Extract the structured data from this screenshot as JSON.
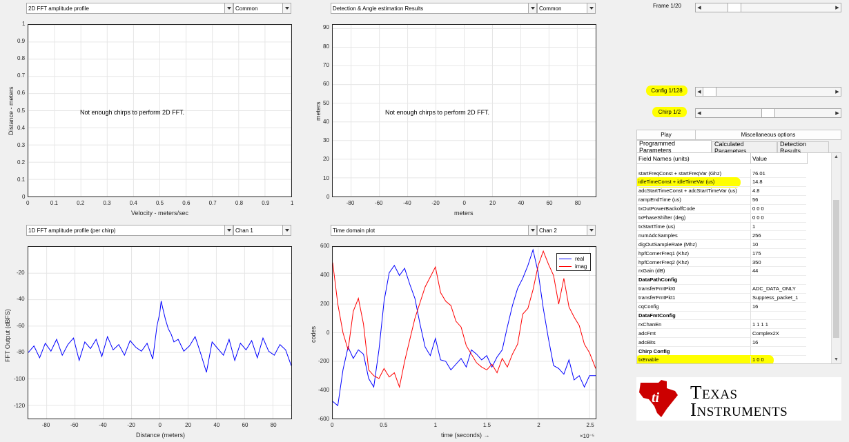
{
  "panels": {
    "top_left": {
      "dropdown": "2D FFT amplitude profile",
      "sub_dropdown": "Common",
      "message": "Not enough chirps to perform 2D FFT.",
      "xlabel": "Velocity - meters/sec",
      "ylabel": "Distance - meters",
      "xticks": [
        "0",
        "0.1",
        "0.2",
        "0.3",
        "0.4",
        "0.5",
        "0.6",
        "0.7",
        "0.8",
        "0.9",
        "1"
      ],
      "yticks": [
        "0",
        "0.1",
        "0.2",
        "0.3",
        "0.4",
        "0.5",
        "0.6",
        "0.7",
        "0.8",
        "0.9",
        "1"
      ]
    },
    "top_mid": {
      "dropdown": "Detection & Angle estimation Results",
      "sub_dropdown": "Common",
      "message": "Not enough chirps to perform 2D FFT.",
      "xlabel": "meters",
      "ylabel": "meters",
      "xticks": [
        "-80",
        "-60",
        "-40",
        "-20",
        "0",
        "20",
        "40",
        "60",
        "80"
      ],
      "yticks": [
        "0",
        "10",
        "20",
        "30",
        "40",
        "50",
        "60",
        "70",
        "80",
        "90"
      ]
    },
    "bottom_left": {
      "dropdown": "1D FFT amplitude profile (per chirp)",
      "sub_dropdown": "Chan 1",
      "xlabel": "Distance (meters)",
      "ylabel": "FFT Output (dBFS)",
      "xticks": [
        "-80",
        "-60",
        "-40",
        "-20",
        "0",
        "20",
        "40",
        "60",
        "80"
      ],
      "yticks": [
        "-20",
        "-40",
        "-60",
        "-80",
        "-100",
        "-120"
      ]
    },
    "bottom_mid": {
      "dropdown": "Time domain plot",
      "sub_dropdown": "Chan 2",
      "xlabel": "time  (seconds) →",
      "ylabel": "codes",
      "exponent": "×10⁻⁵",
      "xticks": [
        "0",
        "0.5",
        "1",
        "1.5",
        "2",
        "2.5"
      ],
      "yticks": [
        "600",
        "400",
        "200",
        "0",
        "-200",
        "-400",
        "-600"
      ],
      "legend": [
        "real",
        "imag"
      ]
    }
  },
  "controls": {
    "frame_label": "Frame 1/20",
    "frame_value": 0.21,
    "config_label": "Config 1/128",
    "config_value": 0.0,
    "chirp_label": "Chirp 1/2",
    "chirp_value": 0.5,
    "play_button": "Play",
    "misc_button": "Miscellaneous options"
  },
  "tabs": [
    "Programmed Parameters",
    "Calculated Parameters",
    "Detection Results"
  ],
  "table": {
    "headers": [
      "Field Names    (units)",
      "Value"
    ],
    "rows": [
      {
        "name": "startFreqConst + startFreqVar (Ghz)",
        "value": "76.01",
        "section": false,
        "highlight": false
      },
      {
        "name": "idleTimeConst + idleTimeVar (us)",
        "value": "14.8",
        "section": false,
        "highlight": true
      },
      {
        "name": "adcStartTimeConst + adcStartTimeVar (us)",
        "value": "4.8",
        "section": false,
        "highlight": false
      },
      {
        "name": "rampEndTime (us)",
        "value": "56",
        "section": false,
        "highlight": false
      },
      {
        "name": "txOutPowerBackoffCode",
        "value": "0 0 0",
        "section": false,
        "highlight": false
      },
      {
        "name": "txPhaseShifter (deg)",
        "value": "0 0 0",
        "section": false,
        "highlight": false
      },
      {
        "name": "txStartTime (us)",
        "value": "1",
        "section": false,
        "highlight": false
      },
      {
        "name": "numAdcSamples",
        "value": "256",
        "section": false,
        "highlight": false
      },
      {
        "name": "digOutSampleRate (Mhz)",
        "value": "10",
        "section": false,
        "highlight": false
      },
      {
        "name": "hpfCornerFreq1 (Khz)",
        "value": "175",
        "section": false,
        "highlight": false
      },
      {
        "name": "hpfCornerFreq2 (Khz)",
        "value": "350",
        "section": false,
        "highlight": false
      },
      {
        "name": "rxGain (dB)",
        "value": "44",
        "section": false,
        "highlight": false
      },
      {
        "name": "DataPathConfig",
        "value": "",
        "section": true,
        "highlight": false
      },
      {
        "name": "transferFmtPkt0",
        "value": "ADC_DATA_ONLY",
        "section": false,
        "highlight": false
      },
      {
        "name": "transferFmtPkt1",
        "value": "Suppress_packet_1",
        "section": false,
        "highlight": false
      },
      {
        "name": "cqConfig",
        "value": "16",
        "section": false,
        "highlight": false
      },
      {
        "name": "DataFmtConfig",
        "value": "",
        "section": true,
        "highlight": false
      },
      {
        "name": "rxChanEn",
        "value": "1 1 1 1",
        "section": false,
        "highlight": false
      },
      {
        "name": "adcFmt",
        "value": "Complex2X",
        "section": false,
        "highlight": false
      },
      {
        "name": "adcBits",
        "value": "16",
        "section": false,
        "highlight": false
      },
      {
        "name": "Chirp Config",
        "value": "",
        "section": true,
        "highlight": false
      },
      {
        "name": "txEnable",
        "value": "1 0 0",
        "section": false,
        "highlight": true
      }
    ]
  },
  "logo": {
    "line1": "Texas",
    "line2": "Instruments",
    "color": "#cc0000"
  },
  "chart_data": [
    {
      "type": "line",
      "title": "",
      "xlabel": "Distance (meters)",
      "ylabel": "FFT Output (dBFS)",
      "xlim": [
        -93,
        93
      ],
      "ylim": [
        -130,
        0
      ],
      "series": [
        {
          "color": "#0000ff",
          "x": [
            -93,
            -89,
            -85,
            -81,
            -77,
            -73,
            -69,
            -65,
            -61,
            -57,
            -53,
            -49,
            -45,
            -41,
            -37,
            -33,
            -29,
            -25,
            -21,
            -17,
            -13,
            -9,
            -5,
            -2,
            0,
            1,
            2,
            4,
            6,
            8,
            10,
            13,
            17,
            21,
            25,
            29,
            33,
            37,
            41,
            45,
            49,
            53,
            57,
            61,
            65,
            69,
            73,
            77,
            81,
            85,
            89,
            93
          ],
          "values": [
            -80,
            -75,
            -84,
            -73,
            -79,
            -70,
            -82,
            -74,
            -69,
            -86,
            -72,
            -77,
            -70,
            -83,
            -68,
            -78,
            -74,
            -82,
            -71,
            -76,
            -79,
            -73,
            -85,
            -60,
            -50,
            -41,
            -46,
            -55,
            -62,
            -66,
            -72,
            -70,
            -79,
            -75,
            -68,
            -81,
            -95,
            -72,
            -77,
            -82,
            -70,
            -86,
            -73,
            -78,
            -71,
            -84,
            -69,
            -79,
            -82,
            -74,
            -78,
            -90
          ]
        }
      ]
    },
    {
      "type": "line",
      "title": "",
      "xlabel": "time  (seconds)",
      "ylabel": "codes",
      "xlim": [
        0,
        2.56
      ],
      "ylim": [
        -600,
        600
      ],
      "series": [
        {
          "name": "real",
          "color": "#0000ff",
          "x": [
            0,
            0.05,
            0.1,
            0.15,
            0.2,
            0.25,
            0.3,
            0.35,
            0.4,
            0.45,
            0.5,
            0.55,
            0.6,
            0.65,
            0.7,
            0.75,
            0.8,
            0.85,
            0.9,
            0.95,
            1.0,
            1.05,
            1.1,
            1.15,
            1.2,
            1.25,
            1.3,
            1.35,
            1.4,
            1.45,
            1.5,
            1.55,
            1.6,
            1.65,
            1.7,
            1.75,
            1.8,
            1.85,
            1.9,
            1.95,
            2.0,
            2.05,
            2.1,
            2.15,
            2.2,
            2.25,
            2.3,
            2.35,
            2.4,
            2.45,
            2.5,
            2.56
          ],
          "values": [
            -480,
            -510,
            -260,
            -100,
            -180,
            -120,
            -150,
            -320,
            -380,
            -120,
            220,
            420,
            470,
            400,
            450,
            340,
            240,
            60,
            -100,
            -160,
            -40,
            -190,
            -200,
            -260,
            -220,
            -180,
            -240,
            -120,
            -150,
            -190,
            -160,
            -240,
            -170,
            -120,
            40,
            190,
            310,
            380,
            470,
            580,
            420,
            170,
            -40,
            -230,
            -250,
            -290,
            -190,
            -330,
            -300,
            -380,
            -300,
            -300
          ]
        },
        {
          "name": "imag",
          "color": "#ff0000",
          "x": [
            0,
            0.05,
            0.1,
            0.15,
            0.2,
            0.25,
            0.3,
            0.35,
            0.4,
            0.45,
            0.5,
            0.55,
            0.6,
            0.65,
            0.7,
            0.75,
            0.8,
            0.85,
            0.9,
            0.95,
            1.0,
            1.05,
            1.1,
            1.15,
            1.2,
            1.25,
            1.3,
            1.35,
            1.4,
            1.45,
            1.5,
            1.55,
            1.6,
            1.65,
            1.7,
            1.75,
            1.8,
            1.85,
            1.9,
            1.95,
            2.0,
            2.05,
            2.1,
            2.15,
            2.2,
            2.25,
            2.3,
            2.35,
            2.4,
            2.45,
            2.5,
            2.56
          ],
          "values": [
            490,
            200,
            0,
            -120,
            150,
            240,
            60,
            -260,
            -300,
            -320,
            -250,
            -310,
            -280,
            -380,
            -200,
            -50,
            100,
            210,
            320,
            390,
            460,
            280,
            220,
            190,
            80,
            40,
            -90,
            -150,
            -210,
            -240,
            -260,
            -220,
            -280,
            -180,
            -240,
            -150,
            -80,
            130,
            170,
            300,
            470,
            570,
            480,
            400,
            200,
            380,
            180,
            110,
            50,
            -80,
            -140,
            -250
          ]
        }
      ]
    }
  ]
}
